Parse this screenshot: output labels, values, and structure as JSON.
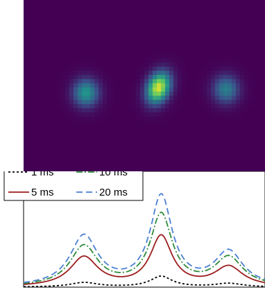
{
  "chart_data": [
    {
      "type": "heatmap",
      "colormap": [
        "#440154",
        "#3b528b",
        "#21918c",
        "#5ec962",
        "#fde725"
      ],
      "background_color": "#46085c",
      "spots": [
        {
          "x": 0.25,
          "y": 0.53,
          "intensity": 0.55
        },
        {
          "x": 0.55,
          "y": 0.5,
          "intensity": 1.0
        },
        {
          "x": 0.83,
          "y": 0.51,
          "intensity": 0.45
        }
      ]
    },
    {
      "type": "line",
      "peaks": [
        0.25,
        0.57,
        0.85
      ],
      "series": [
        {
          "name": "1 ms",
          "color": "#000000",
          "dash": "3,3",
          "amplitudes": [
            0.05,
            0.12,
            0.04
          ]
        },
        {
          "name": "5 ms",
          "color": "#9b1c1c",
          "dash": "",
          "amplitudes": [
            0.33,
            0.56,
            0.22
          ]
        },
        {
          "name": "10 ms",
          "color": "#2e8b3a",
          "dash": "9,3,2,3",
          "amplitudes": [
            0.45,
            0.8,
            0.32
          ]
        },
        {
          "name": "20 ms",
          "color": "#4a7fd4",
          "dash": "9,5",
          "amplitudes": [
            0.56,
            1.0,
            0.38
          ]
        }
      ],
      "legend": {
        "placement": "top-left",
        "columns": 2
      }
    }
  ]
}
